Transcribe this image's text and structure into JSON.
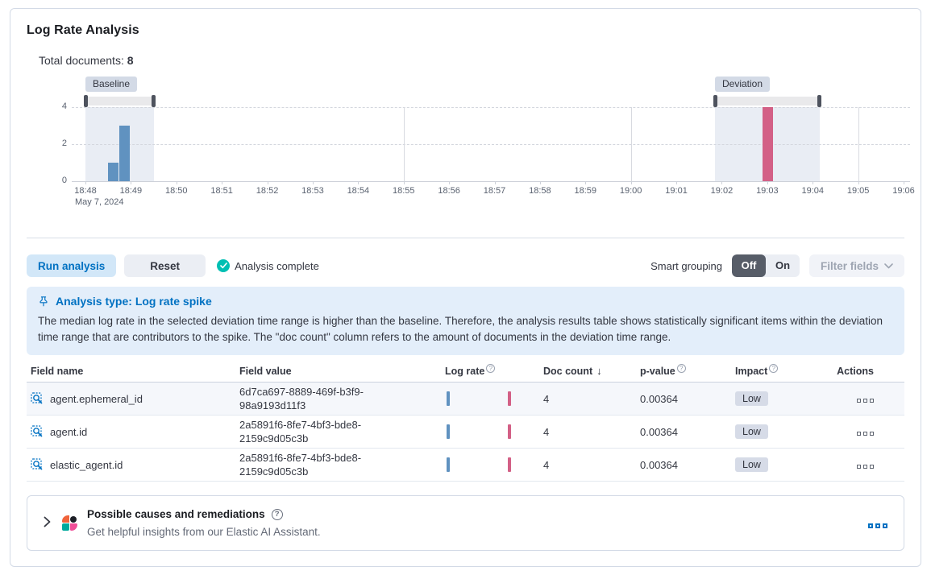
{
  "header": {
    "title": "Log Rate Analysis",
    "total_documents_label": "Total documents:",
    "total_documents_value": "8"
  },
  "chart_data": {
    "type": "bar",
    "title": "Log rate histogram with baseline and deviation brushes",
    "x_axis": {
      "tick_labels": [
        "18:48",
        "18:49",
        "18:50",
        "18:51",
        "18:52",
        "18:53",
        "18:54",
        "18:55",
        "18:56",
        "18:57",
        "18:58",
        "18:59",
        "19:00",
        "19:01",
        "19:02",
        "19:03",
        "19:04",
        "19:05",
        "19:06"
      ],
      "date_label": "May 7, 2024",
      "minutes_span": 18,
      "major_gridlines_minutes": [
        7,
        12,
        17
      ]
    },
    "y_axis": {
      "ticks": [
        0,
        2,
        4
      ],
      "max": 4
    },
    "bar_width_minutes": 0.23,
    "series": [
      {
        "name": "baseline-doc-count",
        "color": "#6092C0",
        "bars": [
          {
            "minute": 0.5,
            "value": 1
          },
          {
            "minute": 0.75,
            "value": 3
          }
        ]
      },
      {
        "name": "deviation-doc-count",
        "color": "#D36086",
        "bars": [
          {
            "minute": 14.9,
            "value": 4
          }
        ]
      }
    ],
    "brushes": [
      {
        "label": "Baseline",
        "from_minute": 0,
        "to_minute": 1.5
      },
      {
        "label": "Deviation",
        "from_minute": 13.85,
        "to_minute": 16.15
      }
    ]
  },
  "controls": {
    "run_button": "Run analysis",
    "reset_button": "Reset",
    "status_text": "Analysis complete",
    "smart_grouping_label": "Smart grouping",
    "smart_grouping_off": "Off",
    "smart_grouping_on": "On",
    "smart_grouping_selected": "Off",
    "filter_fields_button": "Filter fields"
  },
  "callout": {
    "title": "Analysis type: Log rate spike",
    "body": "The median log rate in the selected deviation time range is higher than the baseline. Therefore, the analysis results table shows statistically significant items within the deviation time range that are contributors to the spike. The \"doc count\" column refers to the amount of documents in the deviation time range."
  },
  "results_table": {
    "columns": {
      "field_name": "Field name",
      "field_value": "Field value",
      "log_rate": "Log rate",
      "doc_count": "Doc count",
      "sort_arrow": "↓",
      "p_value": "p-value",
      "impact": "Impact",
      "actions": "Actions"
    },
    "rows": [
      {
        "field_name": "agent.ephemeral_id",
        "field_value": "6d7ca697-8889-469f-b3f9-98a9193d11f3",
        "doc_count": "4",
        "p_value": "0.00364",
        "impact": "Low"
      },
      {
        "field_name": "agent.id",
        "field_value": "2a5891f6-8fe7-4bf3-bde8-2159c9d05c3b",
        "doc_count": "4",
        "p_value": "0.00364",
        "impact": "Low"
      },
      {
        "field_name": "elastic_agent.id",
        "field_value": "2a5891f6-8fe7-4bf3-bde8-2159c9d05c3b",
        "doc_count": "4",
        "p_value": "0.00364",
        "impact": "Low"
      }
    ],
    "mini_chart_colors": {
      "baseline": "#6092C0",
      "deviation": "#D36086"
    }
  },
  "causes_panel": {
    "title": "Possible causes and remediations",
    "subtitle": "Get helpful insights from our Elastic AI Assistant."
  },
  "colors": {
    "primary": "#0071C2",
    "success": "#00BFB3",
    "baseline_bar": "#6092C0",
    "deviation_bar": "#D36086",
    "callout_bg": "#E3EEFA",
    "badge_bg": "#D3DAE6"
  }
}
